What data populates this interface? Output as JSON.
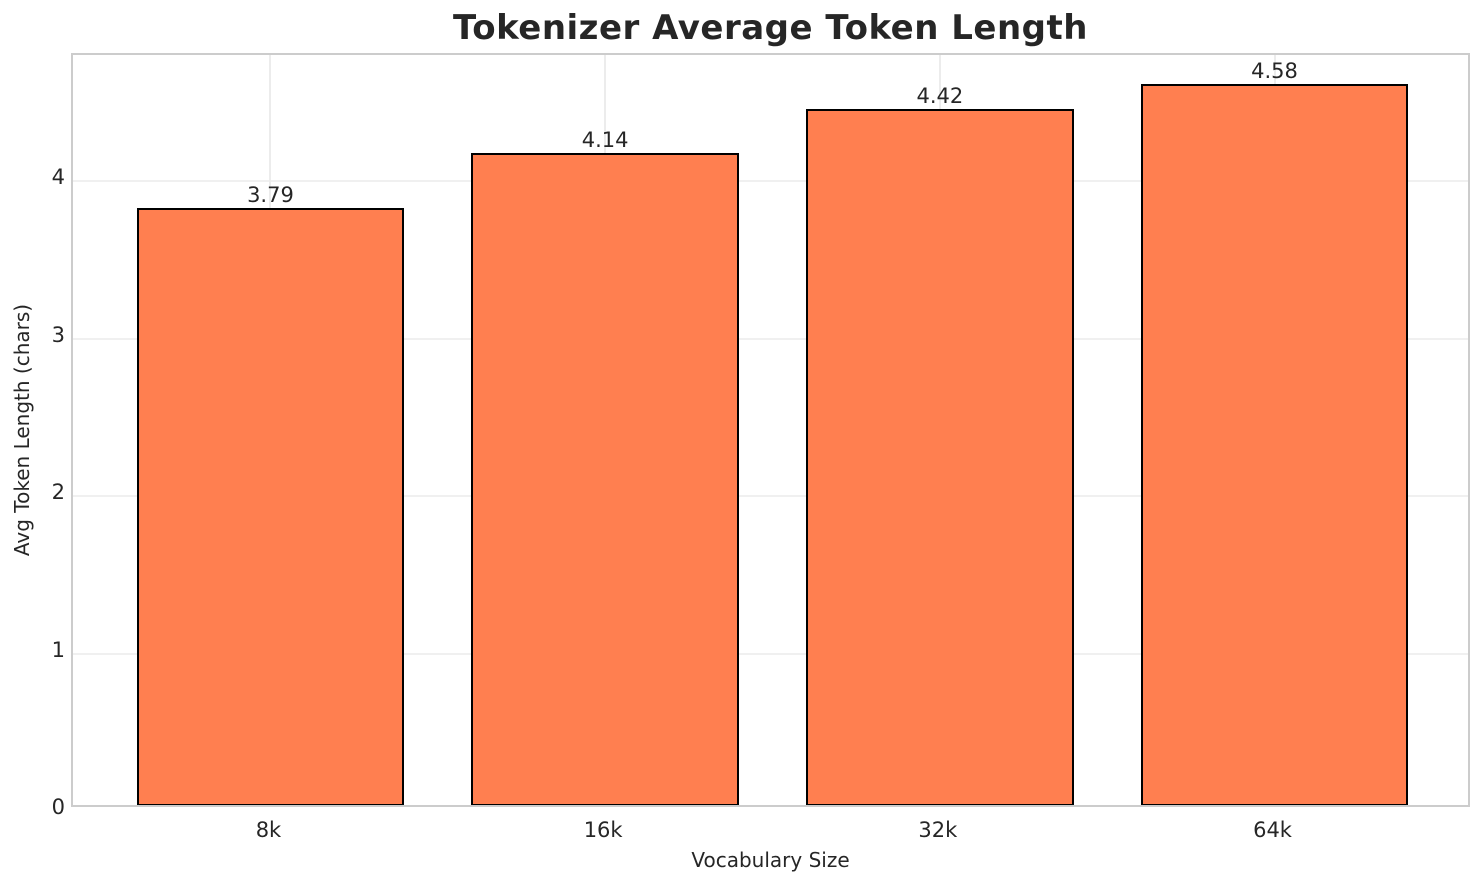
{
  "chart_data": {
    "type": "bar",
    "title": "Tokenizer Average Token Length",
    "xlabel": "Vocabulary Size",
    "ylabel": "Avg Token Length (chars)",
    "categories": [
      "8k",
      "16k",
      "32k",
      "64k"
    ],
    "values": [
      3.79,
      4.14,
      4.42,
      4.58
    ],
    "value_labels": [
      "3.79",
      "4.14",
      "4.42",
      "4.58"
    ],
    "yticks": [
      0,
      1,
      2,
      3,
      4
    ],
    "ytick_labels": [
      "0",
      "1",
      "2",
      "3",
      "4"
    ],
    "ylim": [
      0,
      4.79
    ],
    "bar_width_fraction": 0.8,
    "x_margin_fraction": 0.05,
    "grid": true,
    "legend": null,
    "colors": {
      "bar_fill": "#FF7F50",
      "bar_edge": "#000000",
      "grid_h": "#f0f0f0",
      "grid_v": "#ececec",
      "spine": "#cccccc",
      "text": "#262626",
      "background": "#ffffff"
    }
  }
}
